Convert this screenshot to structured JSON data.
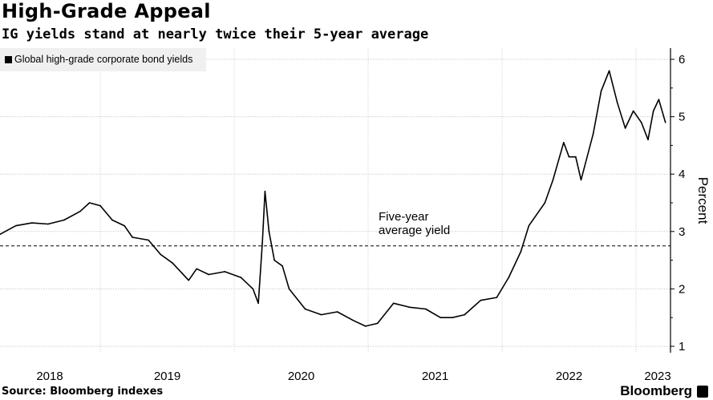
{
  "chart_data": {
    "type": "line",
    "title": "High-Grade Appeal",
    "subtitle": "IG yields stand at nearly twice their 5-year average",
    "ylabel": "Percent",
    "xlabel": "",
    "ylim": [
      1,
      6
    ],
    "xlim": [
      2018.25,
      2023.25
    ],
    "yticks": [
      "1",
      "2",
      "3",
      "4",
      "5",
      "6"
    ],
    "xticks": [
      "2018",
      "2019",
      "2020",
      "2021",
      "2022",
      "2023"
    ],
    "grid": true,
    "legend": {
      "placement": "top-left",
      "entries": [
        "Global high-grade corporate bond yields"
      ]
    },
    "reference_line": {
      "value": 2.75,
      "label_line1": "Five-year",
      "label_line2": "average yield"
    },
    "series": [
      {
        "name": "Global high-grade corporate bond yields",
        "x": [
          2018.25,
          2018.37,
          2018.49,
          2018.61,
          2018.73,
          2018.85,
          2018.92,
          2019.0,
          2019.09,
          2019.18,
          2019.24,
          2019.36,
          2019.45,
          2019.54,
          2019.66,
          2019.72,
          2019.81,
          2019.93,
          2020.05,
          2020.14,
          2020.18,
          2020.21,
          2020.23,
          2020.26,
          2020.3,
          2020.36,
          2020.41,
          2020.53,
          2020.65,
          2020.77,
          2020.89,
          2020.98,
          2021.07,
          2021.19,
          2021.31,
          2021.43,
          2021.54,
          2021.63,
          2021.72,
          2021.84,
          2021.96,
          2022.05,
          2022.14,
          2022.2,
          2022.32,
          2022.38,
          2022.46,
          2022.5,
          2022.55,
          2022.59,
          2022.68,
          2022.74,
          2022.8,
          2022.86,
          2022.92,
          2022.98,
          2023.04,
          2023.09,
          2023.13,
          2023.17,
          2023.22
        ],
        "values": [
          2.95,
          3.1,
          3.15,
          3.13,
          3.2,
          3.35,
          3.5,
          3.45,
          3.2,
          3.1,
          2.9,
          2.85,
          2.6,
          2.45,
          2.15,
          2.35,
          2.25,
          2.3,
          2.2,
          2.0,
          1.75,
          2.8,
          3.7,
          3.0,
          2.5,
          2.4,
          2.0,
          1.65,
          1.55,
          1.6,
          1.45,
          1.35,
          1.4,
          1.75,
          1.68,
          1.65,
          1.5,
          1.5,
          1.55,
          1.8,
          1.85,
          2.2,
          2.65,
          3.1,
          3.5,
          3.9,
          4.55,
          4.3,
          4.3,
          3.9,
          4.7,
          5.45,
          5.8,
          5.25,
          4.8,
          5.1,
          4.9,
          4.6,
          5.1,
          5.3,
          4.9
        ]
      }
    ]
  },
  "footer": {
    "source": "Source: Bloomberg indexes",
    "brand": "Bloomberg"
  }
}
